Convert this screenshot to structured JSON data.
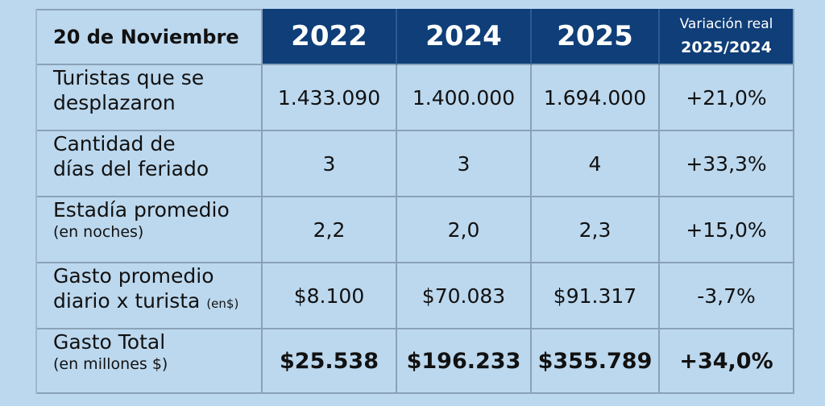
{
  "header": {
    "corner": "20 de Noviembre",
    "years": [
      "2022",
      "2024",
      "2025"
    ],
    "variation_line1": "Variación real",
    "variation_line2": "2025/2024"
  },
  "rows": [
    {
      "label_line1": "Turistas que se",
      "label_line2": "desplazaron",
      "values": [
        "1.433.090",
        "1.400.000",
        "1.694.000"
      ],
      "variation": "+21,0%"
    },
    {
      "label_line1": "Cantidad de",
      "label_line2": "días del feriado",
      "values": [
        "3",
        "3",
        "4"
      ],
      "variation": "+33,3%"
    },
    {
      "label_line1": "Estadía promedio",
      "label_line2": "(en noches)",
      "values": [
        "2,2",
        "2,0",
        "2,3"
      ],
      "variation": "+15,0%"
    },
    {
      "label_line1": "Gasto promedio",
      "label_line2": "diario x turista",
      "label_note": "(en$)",
      "values": [
        "$8.100",
        "$70.083",
        "$91.317"
      ],
      "variation": "-3,7%"
    },
    {
      "label_line1": "Gasto Total",
      "label_line2": "(en millones $)",
      "values": [
        "$25.538",
        "$196.233",
        "$355.789"
      ],
      "variation": "+34,0%"
    }
  ]
}
